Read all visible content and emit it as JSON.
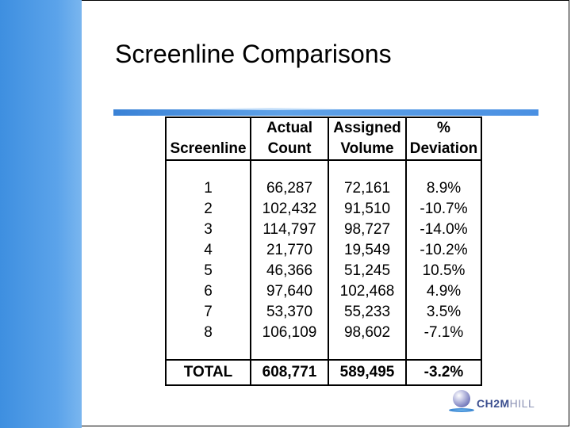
{
  "slide": {
    "title": "Screenline Comparisons"
  },
  "table": {
    "headers": [
      [
        "",
        "Actual",
        "Assigned",
        "%"
      ],
      [
        "Screenline",
        "Count",
        "Volume",
        "Deviation"
      ]
    ],
    "rows": [
      [
        "1",
        "66,287",
        "72,161",
        "8.9%"
      ],
      [
        "2",
        "102,432",
        "91,510",
        "-10.7%"
      ],
      [
        "3",
        "114,797",
        "98,727",
        "-14.0%"
      ],
      [
        "4",
        "21,770",
        "19,549",
        "-10.2%"
      ],
      [
        "5",
        "46,366",
        "51,245",
        "10.5%"
      ],
      [
        "6",
        "97,640",
        "102,468",
        "4.9%"
      ],
      [
        "7",
        "53,370",
        "55,233",
        "3.5%"
      ],
      [
        "8",
        "106,109",
        "98,602",
        "-7.1%"
      ]
    ],
    "total": [
      "TOTAL",
      "608,771",
      "589,495",
      "-3.2%"
    ]
  },
  "logo": {
    "text_strong": "CH2M",
    "text_light": "HILL"
  },
  "colors": {
    "left_bar": "#4a97e4",
    "rule": "#4a90e2",
    "logo_primary": "#3c4f8f",
    "logo_secondary": "#8c93b5"
  }
}
